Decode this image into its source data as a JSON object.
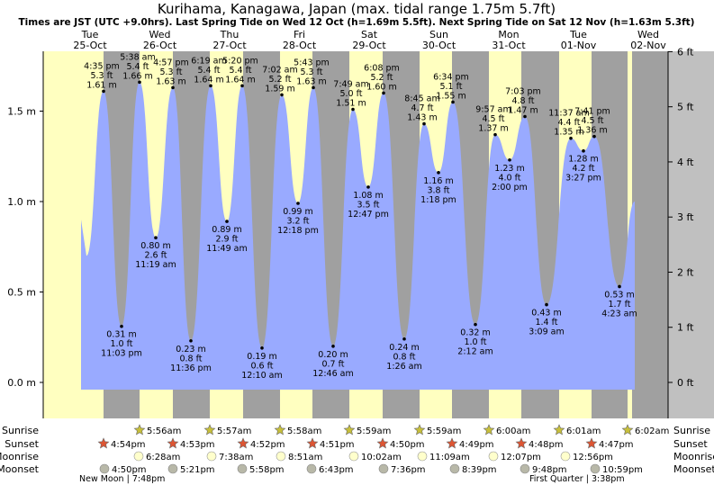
{
  "chart_data": {
    "type": "area",
    "title": "Kurihama, Kanagawa, Japan (max. tidal range 1.75m 5.7ft)",
    "subtitle": "Times are JST (UTC +9.0hrs). Last Spring Tide on Wed 12 Oct (h=1.69m 5.5ft). Next Spring Tide on Sat 12 Nov (h=1.63m 5.3ft)",
    "ylim_m": [
      -0.16,
      1.9
    ],
    "left_axis_ticks": [
      {
        "v": 0.0,
        "label": "0.0 m"
      },
      {
        "v": 0.5,
        "label": "0.5 m"
      },
      {
        "v": 1.0,
        "label": "1.0 m"
      },
      {
        "v": 1.5,
        "label": "1.5 m"
      }
    ],
    "right_axis_ticks": [
      {
        "v": 0,
        "label": "0 ft"
      },
      {
        "v": 1,
        "label": "1 ft"
      },
      {
        "v": 2,
        "label": "2 ft"
      },
      {
        "v": 3,
        "label": "3 ft"
      },
      {
        "v": 4,
        "label": "4 ft"
      },
      {
        "v": 5,
        "label": "5 ft"
      },
      {
        "v": 6,
        "label": "6 ft"
      }
    ],
    "days": [
      {
        "dow": "Tue",
        "date": "25-Oct",
        "color": "#000000",
        "sunrise": null,
        "sunset": null
      },
      {
        "dow": "Wed",
        "date": "26-Oct",
        "color": "#cc0000",
        "sunrise": "5:56am",
        "sunset": "4:54pm"
      },
      {
        "dow": "Thu",
        "date": "27-Oct",
        "color": "#cc0000",
        "sunrise": "5:57am",
        "sunset": "4:53pm"
      },
      {
        "dow": "Fri",
        "date": "28-Oct",
        "color": "#cc0000",
        "sunrise": "5:58am",
        "sunset": "4:52pm"
      },
      {
        "dow": "Sat",
        "date": "29-Oct",
        "color": "#cc0000",
        "sunrise": "5:59am",
        "sunset": "4:51pm"
      },
      {
        "dow": "Sun",
        "date": "30-Oct",
        "color": "#cc0000",
        "sunrise": "5:59am",
        "sunset": "4:50pm"
      },
      {
        "dow": "Mon",
        "date": "31-Oct",
        "color": "#cc0000",
        "sunrise": "6:00am",
        "sunset": "4:49pm"
      },
      {
        "dow": "Tue",
        "date": "01-Nov",
        "color": "#cc0000",
        "sunrise": "6:01am",
        "sunset": "4:48pm"
      },
      {
        "dow": "Wed",
        "date": "02-Nov",
        "color": "#cc0000",
        "sunrise": "6:02am",
        "sunset": "4:47pm"
      }
    ],
    "tides": [
      {
        "type": "high",
        "h_m": 1.61,
        "lines": [
          "4:35 pm",
          "5.3 ft",
          "1.61 m"
        ]
      },
      {
        "type": "low",
        "h_m": 0.31,
        "lines": [
          "0.31 m",
          "1.0 ft",
          "11:03 pm"
        ]
      },
      {
        "type": "high",
        "h_m": 1.66,
        "lines": [
          "5:38 am",
          "5.4 ft",
          "1.66 m"
        ]
      },
      {
        "type": "low",
        "h_m": 0.8,
        "lines": [
          "0.80 m",
          "2.6 ft",
          "11:19 am"
        ]
      },
      {
        "type": "high",
        "h_m": 1.63,
        "lines": [
          "4:57 pm",
          "5.3 ft",
          "1.63 m"
        ]
      },
      {
        "type": "low",
        "h_m": 0.23,
        "lines": [
          "0.23 m",
          "0.8 ft",
          "11:36 pm"
        ]
      },
      {
        "type": "high",
        "h_m": 1.64,
        "lines": [
          "6:19 am",
          "5.4 ft",
          "1.64 m"
        ]
      },
      {
        "type": "low",
        "h_m": 0.89,
        "lines": [
          "0.89 m",
          "2.9 ft",
          "11:49 am"
        ]
      },
      {
        "type": "high",
        "h_m": 1.64,
        "lines": [
          "5:20 pm",
          "5.4 ft",
          "1.64 m"
        ]
      },
      {
        "type": "low",
        "h_m": 0.19,
        "lines": [
          "0.19 m",
          "0.6 ft",
          "12:10 am"
        ]
      },
      {
        "type": "high",
        "h_m": 1.59,
        "lines": [
          "7:02 am",
          "5.2 ft",
          "1.59 m"
        ]
      },
      {
        "type": "low",
        "h_m": 0.99,
        "lines": [
          "0.99 m",
          "3.2 ft",
          "12:18 pm"
        ]
      },
      {
        "type": "high",
        "h_m": 1.63,
        "lines": [
          "5:43 pm",
          "5.3 ft",
          "1.63 m"
        ]
      },
      {
        "type": "low",
        "h_m": 0.2,
        "lines": [
          "0.20 m",
          "0.7 ft",
          "12:46 am"
        ]
      },
      {
        "type": "high",
        "h_m": 1.51,
        "lines": [
          "7:49 am",
          "5.0 ft",
          "1.51 m"
        ]
      },
      {
        "type": "low",
        "h_m": 1.08,
        "lines": [
          "1.08 m",
          "3.5 ft",
          "12:47 pm"
        ]
      },
      {
        "type": "high",
        "h_m": 1.6,
        "lines": [
          "6:08 pm",
          "5.2 ft",
          "1.60 m"
        ]
      },
      {
        "type": "low",
        "h_m": 0.24,
        "lines": [
          "0.24 m",
          "0.8 ft",
          "1:26 am"
        ]
      },
      {
        "type": "high",
        "h_m": 1.43,
        "lines": [
          "8:45 am",
          "4.7 ft",
          "1.43 m"
        ]
      },
      {
        "type": "low",
        "h_m": 1.16,
        "lines": [
          "1.16 m",
          "3.8 ft",
          "1:18 pm"
        ]
      },
      {
        "type": "high",
        "h_m": 1.55,
        "lines": [
          "6:34 pm",
          "5.1 ft",
          "1.55 m"
        ]
      },
      {
        "type": "low",
        "h_m": 0.32,
        "lines": [
          "0.32 m",
          "1.0 ft",
          "2:12 am"
        ]
      },
      {
        "type": "high",
        "h_m": 1.37,
        "lines": [
          "9:57 am",
          "4.5 ft",
          "1.37 m"
        ]
      },
      {
        "type": "low",
        "h_m": 1.23,
        "lines": [
          "1.23 m",
          "4.0 ft",
          "2:00 pm"
        ]
      },
      {
        "type": "high",
        "h_m": 1.47,
        "lines": [
          "7:03 pm",
          "4.8 ft",
          "1.47 m"
        ]
      },
      {
        "type": "low",
        "h_m": 0.43,
        "lines": [
          "0.43 m",
          "1.4 ft",
          "3:09 am"
        ]
      },
      {
        "type": "high",
        "h_m": 1.35,
        "lines": [
          "11:37 am",
          "4.4 ft",
          "1.35 m"
        ]
      },
      {
        "type": "low",
        "h_m": 1.28,
        "lines": [
          "1.28 m",
          "4.2 ft",
          "3:27 pm"
        ]
      },
      {
        "type": "high",
        "h_m": 1.36,
        "lines": [
          "7:41 pm",
          "4.5 ft",
          "1.36 m"
        ]
      },
      {
        "type": "low",
        "h_m": 0.53,
        "lines": [
          "0.53 m",
          "1.7 ft",
          "4:23 am"
        ]
      }
    ],
    "moonrise": [
      "6:28am",
      "7:38am",
      "8:51am",
      "10:02am",
      "11:09am",
      "12:07pm",
      "12:56pm"
    ],
    "moonset": [
      "4:50pm",
      "5:21pm",
      "5:58pm",
      "6:43pm",
      "7:36pm",
      "8:39pm",
      "9:48pm",
      "10:59pm"
    ],
    "row_labels": {
      "sunrise": "Sunrise",
      "sunset": "Sunset",
      "moonrise": "Moonrise",
      "moonset": "Moonset"
    },
    "moon_phases": [
      "New Moon | 7:48pm",
      "First Quarter | 3:38pm"
    ],
    "colors": {
      "water": "#99aaff",
      "night": "#a0a0a0",
      "day": "#ffffc0",
      "axis_bg": "#c0c0c0",
      "sun_star": "#c8c03a",
      "sunset_star": "#dd5533",
      "moonrise": "#ffffcc",
      "moonset": "#b8b8a8"
    }
  }
}
